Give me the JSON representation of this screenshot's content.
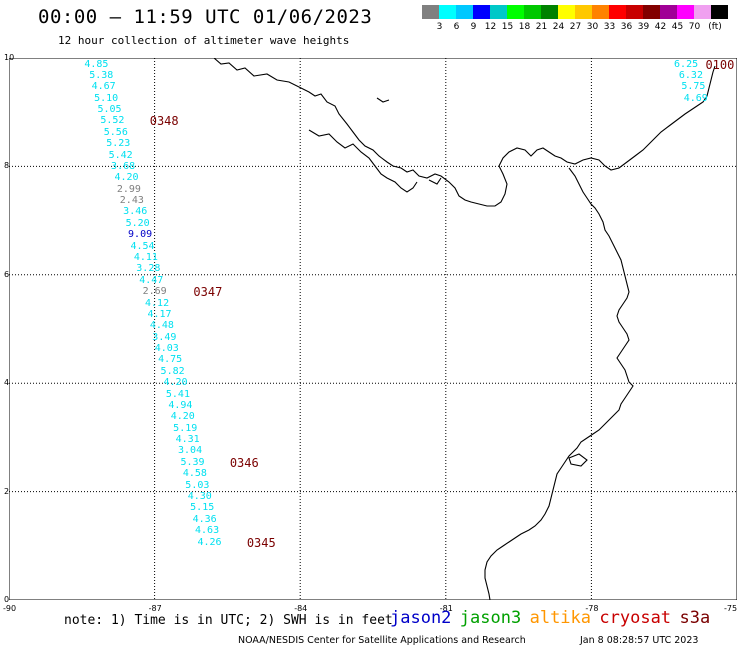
{
  "header": {
    "title": "00:00 – 11:59 UTC 01/06/2023",
    "subtitle": "12 hour collection of altimeter wave heights"
  },
  "color_scale": {
    "unit": "(ft)",
    "bins": [
      {
        "label": "",
        "color": "#808080"
      },
      {
        "label": "3",
        "color": "#00ffff"
      },
      {
        "label": "6",
        "color": "#00c8ff"
      },
      {
        "label": "9",
        "color": "#0000ff"
      },
      {
        "label": "12",
        "color": "#00c8c8"
      },
      {
        "label": "15",
        "color": "#00ff00"
      },
      {
        "label": "18",
        "color": "#00c800"
      },
      {
        "label": "21",
        "color": "#008200"
      },
      {
        "label": "24",
        "color": "#ffff00"
      },
      {
        "label": "27",
        "color": "#ffc800"
      },
      {
        "label": "30",
        "color": "#ff8200"
      },
      {
        "label": "33",
        "color": "#ff0000"
      },
      {
        "label": "36",
        "color": "#c80000"
      },
      {
        "label": "39",
        "color": "#820000"
      },
      {
        "label": "42",
        "color": "#a00096"
      },
      {
        "label": "45",
        "color": "#ff00ff"
      },
      {
        "label": "70",
        "color": "#f0a0f0"
      },
      {
        "label": "",
        "color": "#000000"
      }
    ]
  },
  "map": {
    "lon_range": [
      -90,
      -75
    ],
    "lat_range": [
      0,
      10
    ],
    "y_ticks": [
      "0",
      "2",
      "4",
      "6",
      "8",
      "10"
    ],
    "x_ticks": [
      "-90",
      "-87",
      "-84",
      "-81",
      "-78",
      "-75"
    ],
    "track_color_default": "#00e0f0",
    "colors": {
      "low": "#808080",
      "blue": "#0000c8"
    }
  },
  "observations": [
    {
      "value": "4.85",
      "lon": -88.2,
      "lat": 9.88,
      "c": "default"
    },
    {
      "value": "5.38",
      "lon": -88.1,
      "lat": 9.67,
      "c": "default"
    },
    {
      "value": "4.67",
      "lon": -88.05,
      "lat": 9.46,
      "c": "default"
    },
    {
      "value": "5.10",
      "lon": -88.0,
      "lat": 9.25,
      "c": "default"
    },
    {
      "value": "5.05",
      "lon": -87.93,
      "lat": 9.04,
      "c": "default"
    },
    {
      "value": "5.52",
      "lon": -87.87,
      "lat": 8.83,
      "c": "default"
    },
    {
      "value": "5.56",
      "lon": -87.8,
      "lat": 8.62,
      "c": "default"
    },
    {
      "value": "5.23",
      "lon": -87.75,
      "lat": 8.41,
      "c": "default"
    },
    {
      "value": "5.42",
      "lon": -87.7,
      "lat": 8.2,
      "c": "default"
    },
    {
      "value": "3.68",
      "lon": -87.65,
      "lat": 7.99,
      "c": "default"
    },
    {
      "value": "4.20",
      "lon": -87.58,
      "lat": 7.78,
      "c": "default"
    },
    {
      "value": "2.99",
      "lon": -87.53,
      "lat": 7.57,
      "c": "low"
    },
    {
      "value": "2.43",
      "lon": -87.47,
      "lat": 7.36,
      "c": "low"
    },
    {
      "value": "3.46",
      "lon": -87.4,
      "lat": 7.15,
      "c": "default"
    },
    {
      "value": "5.20",
      "lon": -87.35,
      "lat": 6.94,
      "c": "default"
    },
    {
      "value": "9.09",
      "lon": -87.3,
      "lat": 6.73,
      "c": "blue"
    },
    {
      "value": "4.54",
      "lon": -87.25,
      "lat": 6.52,
      "c": "default"
    },
    {
      "value": "4.11",
      "lon": -87.18,
      "lat": 6.31,
      "c": "default"
    },
    {
      "value": "3.28",
      "lon": -87.13,
      "lat": 6.1,
      "c": "default"
    },
    {
      "value": "4.47",
      "lon": -87.07,
      "lat": 5.89,
      "c": "default"
    },
    {
      "value": "2.69",
      "lon": -87.0,
      "lat": 5.68,
      "c": "low"
    },
    {
      "value": "4.12",
      "lon": -86.95,
      "lat": 5.47,
      "c": "default"
    },
    {
      "value": "4.17",
      "lon": -86.9,
      "lat": 5.26,
      "c": "default"
    },
    {
      "value": "4.48",
      "lon": -86.85,
      "lat": 5.05,
      "c": "default"
    },
    {
      "value": "3.49",
      "lon": -86.8,
      "lat": 4.84,
      "c": "default"
    },
    {
      "value": "4.03",
      "lon": -86.75,
      "lat": 4.63,
      "c": "default"
    },
    {
      "value": "4.75",
      "lon": -86.68,
      "lat": 4.42,
      "c": "default"
    },
    {
      "value": "5.82",
      "lon": -86.63,
      "lat": 4.21,
      "c": "default"
    },
    {
      "value": "4.20",
      "lon": -86.57,
      "lat": 4.0,
      "c": "default"
    },
    {
      "value": "5.41",
      "lon": -86.52,
      "lat": 3.79,
      "c": "default"
    },
    {
      "value": "4.94",
      "lon": -86.47,
      "lat": 3.58,
      "c": "default"
    },
    {
      "value": "4.20",
      "lon": -86.42,
      "lat": 3.37,
      "c": "default"
    },
    {
      "value": "5.19",
      "lon": -86.37,
      "lat": 3.16,
      "c": "default"
    },
    {
      "value": "4.31",
      "lon": -86.32,
      "lat": 2.95,
      "c": "default"
    },
    {
      "value": "3.04",
      "lon": -86.27,
      "lat": 2.74,
      "c": "default"
    },
    {
      "value": "5.39",
      "lon": -86.22,
      "lat": 2.53,
      "c": "default"
    },
    {
      "value": "4.58",
      "lon": -86.17,
      "lat": 2.32,
      "c": "default"
    },
    {
      "value": "5.03",
      "lon": -86.12,
      "lat": 2.11,
      "c": "default"
    },
    {
      "value": "4.30",
      "lon": -86.07,
      "lat": 1.9,
      "c": "default"
    },
    {
      "value": "5.15",
      "lon": -86.02,
      "lat": 1.69,
      "c": "default"
    },
    {
      "value": "4.36",
      "lon": -85.97,
      "lat": 1.48,
      "c": "default"
    },
    {
      "value": "4.63",
      "lon": -85.92,
      "lat": 1.27,
      "c": "default"
    },
    {
      "value": "4.26",
      "lon": -85.87,
      "lat": 1.06,
      "c": "default"
    },
    {
      "value": "6.25",
      "lon": -76.05,
      "lat": 9.88,
      "c": "default"
    },
    {
      "value": "6.32",
      "lon": -75.95,
      "lat": 9.67,
      "c": "default"
    },
    {
      "value": "5.75",
      "lon": -75.9,
      "lat": 9.46,
      "c": "default"
    },
    {
      "value": "4.69",
      "lon": -75.85,
      "lat": 9.25,
      "c": "default"
    }
  ],
  "passes": [
    {
      "label": "0348",
      "lon": -87.1,
      "lat": 8.83
    },
    {
      "label": "0347",
      "lon": -86.2,
      "lat": 5.68
    },
    {
      "label": "0346",
      "lon": -85.45,
      "lat": 2.53
    },
    {
      "label": "0345",
      "lon": -85.1,
      "lat": 1.06
    },
    {
      "label": "0100",
      "lon": -75.65,
      "lat": 9.88
    }
  ],
  "footer": {
    "note": "note: 1) Time is in UTC; 2) SWH is in feet",
    "satellites": [
      {
        "name": "jason2",
        "color": "#0000c8"
      },
      {
        "name": "jason3",
        "color": "#00a000"
      },
      {
        "name": "altika",
        "color": "#ff9600"
      },
      {
        "name": "cryosat",
        "color": "#c80000"
      },
      {
        "name": "s3a",
        "color": "#7a0000"
      }
    ],
    "credit": "NOAA/NESDIS Center for Satellite Applications and Research",
    "timestamp": "Jan  8 08:28:57 UTC 2023"
  }
}
